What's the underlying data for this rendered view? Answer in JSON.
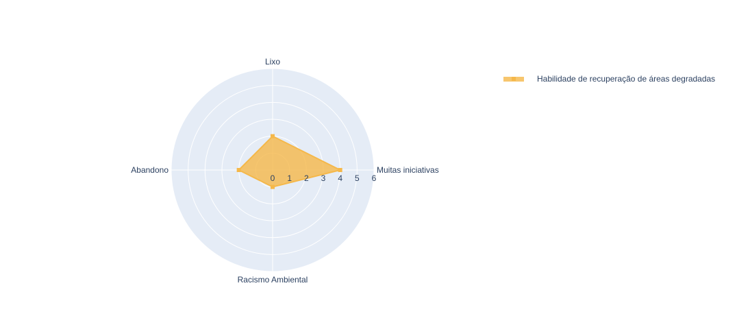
{
  "chart_data": {
    "type": "radar",
    "categories": [
      "Muitas iniciativas",
      "Lixo",
      "Abandono",
      "Racismo Ambiental"
    ],
    "series": [
      {
        "name": "Habilidade de recuperação de áreas degradadas",
        "values": [
          4,
          2,
          2,
          1
        ],
        "color": "#f5b84a",
        "fill_color": "#f5b84a",
        "fill_opacity": 0.8
      }
    ],
    "radial_range": [
      0,
      6
    ],
    "radial_ticks": [
      "0",
      "1",
      "2",
      "3",
      "4",
      "5",
      "6"
    ],
    "grid": true,
    "legend_position": "top-right",
    "background_color": "#e5ecf6",
    "grid_color": "#ffffff"
  }
}
